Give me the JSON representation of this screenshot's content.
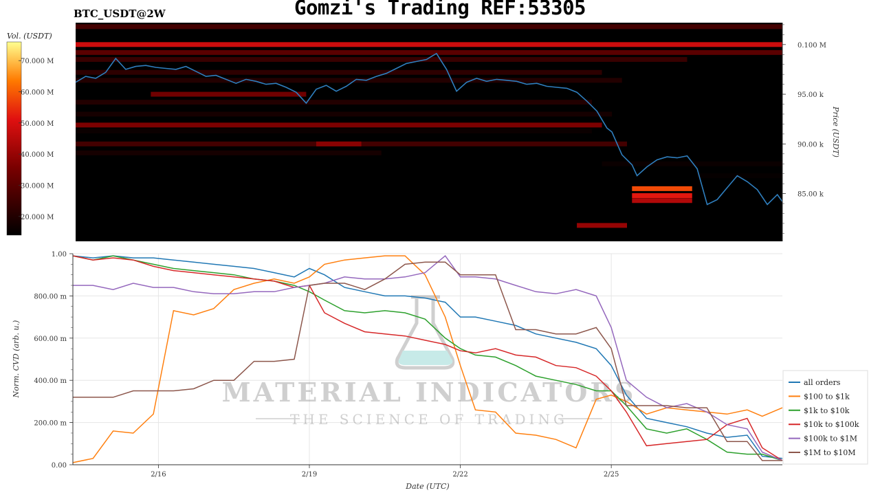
{
  "header": {
    "title": "Gomzi's Trading REF:53305",
    "symbol": "BTC_USDT@2W"
  },
  "watermark": {
    "brand": "MATERIAL INDICATORS",
    "tagline": "THE SCIENCE OF TRADING",
    "icon": "flask-icon"
  },
  "colors": {
    "price_line": "#2f7fbf",
    "heatmap_high": "#ffff80",
    "heatmap_mid": "#cc1010",
    "heatmap_low": "#000000"
  },
  "chart_data": [
    {
      "type": "heatmap",
      "name": "order-book-heatmap",
      "colorbar": {
        "label": "Vol. (USDT)",
        "ticks": [
          "20.000 M",
          "30.000 M",
          "40.000 M",
          "50.000 M",
          "60.000 M",
          "70.000 M"
        ],
        "tick_values": [
          20,
          30,
          40,
          50,
          60,
          70
        ],
        "range": [
          14,
          76
        ]
      },
      "y_axis": {
        "label": "Price (USDT)",
        "ticks": [
          "85.00 k",
          "90.00 k",
          "95.00 k",
          "0.100 M"
        ],
        "tick_values": [
          85000,
          90000,
          95000,
          100000
        ],
        "range": [
          80200,
          102200
        ],
        "position": "right"
      },
      "x_range": [
        14.3,
        28.4
      ],
      "bands": [
        {
          "price": 100000,
          "start": 14.3,
          "end": 28.4,
          "vol": 48
        },
        {
          "price": 99200,
          "start": 14.3,
          "end": 28.4,
          "vol": 30
        },
        {
          "price": 101800,
          "start": 14.3,
          "end": 28.4,
          "vol": 26
        },
        {
          "price": 98500,
          "start": 14.3,
          "end": 26.5,
          "vol": 24
        },
        {
          "price": 97200,
          "start": 14.3,
          "end": 24.8,
          "vol": 22
        },
        {
          "price": 96400,
          "start": 14.3,
          "end": 25.2,
          "vol": 20
        },
        {
          "price": 95000,
          "start": 15.8,
          "end": 18.9,
          "vol": 34
        },
        {
          "price": 94200,
          "start": 14.3,
          "end": 24.6,
          "vol": 20
        },
        {
          "price": 93000,
          "start": 14.3,
          "end": 25.0,
          "vol": 18
        },
        {
          "price": 91900,
          "start": 14.3,
          "end": 24.8,
          "vol": 36
        },
        {
          "price": 91300,
          "start": 14.3,
          "end": 24.6,
          "vol": 16
        },
        {
          "price": 90000,
          "start": 14.3,
          "end": 25.3,
          "vol": 26
        },
        {
          "price": 89100,
          "start": 14.3,
          "end": 20.4,
          "vol": 18
        },
        {
          "price": 90000,
          "start": 19.1,
          "end": 20.0,
          "vol": 38
        },
        {
          "price": 85500,
          "start": 25.4,
          "end": 26.6,
          "vol": 58
        },
        {
          "price": 84800,
          "start": 25.4,
          "end": 26.6,
          "vol": 52
        },
        {
          "price": 84300,
          "start": 25.4,
          "end": 26.6,
          "vol": 44
        },
        {
          "price": 81800,
          "start": 24.3,
          "end": 25.3,
          "vol": 40
        },
        {
          "price": 88000,
          "start": 24.8,
          "end": 28.4,
          "vol": 16
        },
        {
          "price": 86800,
          "start": 26.7,
          "end": 28.4,
          "vol": 15
        }
      ],
      "price_series": {
        "name": "price",
        "x": [
          14.3,
          14.5,
          14.7,
          14.9,
          15.1,
          15.3,
          15.5,
          15.7,
          15.9,
          16.1,
          16.3,
          16.5,
          16.7,
          16.9,
          17.1,
          17.3,
          17.5,
          17.7,
          17.9,
          18.1,
          18.3,
          18.5,
          18.7,
          18.9,
          19.1,
          19.3,
          19.5,
          19.7,
          19.9,
          20.1,
          20.3,
          20.5,
          20.7,
          20.9,
          21.1,
          21.3,
          21.4,
          21.5,
          21.7,
          21.9,
          22.1,
          22.3,
          22.5,
          22.7,
          22.9,
          23.1,
          23.3,
          23.5,
          23.7,
          23.9,
          24.1,
          24.3,
          24.5,
          24.7,
          24.9,
          25.0,
          25.2,
          25.4,
          25.5,
          25.7,
          25.9,
          26.1,
          26.3,
          26.5,
          26.7,
          26.9,
          27.1,
          27.3,
          27.5,
          27.7,
          27.9,
          28.1,
          28.3,
          28.4
        ],
        "y": [
          96200,
          96800,
          96600,
          97200,
          98600,
          97500,
          97800,
          97900,
          97700,
          97600,
          97500,
          97800,
          97300,
          96800,
          96900,
          96500,
          96100,
          96500,
          96300,
          96000,
          96100,
          95700,
          95200,
          94100,
          95500,
          95900,
          95300,
          95800,
          96500,
          96400,
          96800,
          97100,
          97600,
          98100,
          98300,
          98500,
          98800,
          99100,
          97500,
          95300,
          96200,
          96600,
          96300,
          96500,
          96400,
          96300,
          96000,
          96100,
          95800,
          95700,
          95600,
          95200,
          94300,
          93300,
          91600,
          91200,
          88900,
          87900,
          86800,
          87700,
          88400,
          88700,
          88600,
          88800,
          87500,
          83900,
          84400,
          85600,
          86800,
          86200,
          85400,
          83900,
          84900,
          84200
        ]
      }
    },
    {
      "type": "line",
      "name": "normalized-cvd",
      "ylabel": "Norm. CVD (arb. u.)",
      "xlabel": "Date (UTC)",
      "x_ticks": [
        "2/16",
        "2/19",
        "2/22",
        "2/25"
      ],
      "x_tick_values": [
        16,
        19,
        22,
        25
      ],
      "xlim": [
        14.3,
        28.4
      ],
      "y_ticks": [
        "0.00",
        "200.00 m",
        "400.00 m",
        "600.00 m",
        "800.00 m",
        "1.00"
      ],
      "y_tick_values": [
        0,
        0.2,
        0.4,
        0.6,
        0.8,
        1.0
      ],
      "ylim": [
        0,
        1.0
      ],
      "grid": true,
      "legend_position": "bottom-right outside",
      "x": [
        14.3,
        14.7,
        15.1,
        15.5,
        15.9,
        16.3,
        16.7,
        17.1,
        17.5,
        17.9,
        18.3,
        18.7,
        19.0,
        19.3,
        19.7,
        20.1,
        20.5,
        20.9,
        21.3,
        21.7,
        22.0,
        22.3,
        22.7,
        23.1,
        23.5,
        23.9,
        24.3,
        24.7,
        25.0,
        25.3,
        25.7,
        26.1,
        26.5,
        26.9,
        27.3,
        27.7,
        28.0,
        28.4
      ],
      "series": [
        {
          "name": "all orders",
          "color": "#1f77b4",
          "values": [
            0.99,
            0.98,
            0.99,
            0.98,
            0.98,
            0.97,
            0.96,
            0.95,
            0.94,
            0.93,
            0.91,
            0.89,
            0.93,
            0.9,
            0.84,
            0.82,
            0.8,
            0.8,
            0.79,
            0.77,
            0.7,
            0.7,
            0.68,
            0.66,
            0.62,
            0.6,
            0.58,
            0.55,
            0.47,
            0.33,
            0.22,
            0.2,
            0.18,
            0.15,
            0.13,
            0.14,
            0.04,
            0.03
          ]
        },
        {
          "name": "$100 to $1k",
          "color": "#ff7f0e",
          "values": [
            0.01,
            0.03,
            0.16,
            0.15,
            0.24,
            0.73,
            0.71,
            0.74,
            0.83,
            0.86,
            0.88,
            0.86,
            0.89,
            0.95,
            0.97,
            0.98,
            0.99,
            0.99,
            0.9,
            0.7,
            0.47,
            0.26,
            0.25,
            0.15,
            0.14,
            0.12,
            0.08,
            0.31,
            0.33,
            0.3,
            0.24,
            0.27,
            0.26,
            0.25,
            0.24,
            0.26,
            0.23,
            0.27
          ]
        },
        {
          "name": "$1k to $10k",
          "color": "#2ca02c",
          "values": [
            0.99,
            0.97,
            0.99,
            0.97,
            0.95,
            0.93,
            0.92,
            0.91,
            0.9,
            0.88,
            0.87,
            0.85,
            0.82,
            0.78,
            0.73,
            0.72,
            0.73,
            0.72,
            0.69,
            0.6,
            0.55,
            0.52,
            0.51,
            0.47,
            0.42,
            0.4,
            0.38,
            0.35,
            0.35,
            0.28,
            0.17,
            0.15,
            0.17,
            0.12,
            0.06,
            0.05,
            0.05,
            0.02
          ]
        },
        {
          "name": "$10k to $100k",
          "color": "#d62728",
          "values": [
            0.99,
            0.97,
            0.98,
            0.97,
            0.94,
            0.92,
            0.91,
            0.9,
            0.89,
            0.88,
            0.87,
            0.84,
            0.85,
            0.72,
            0.67,
            0.63,
            0.62,
            0.61,
            0.59,
            0.57,
            0.54,
            0.53,
            0.55,
            0.52,
            0.51,
            0.47,
            0.46,
            0.42,
            0.35,
            0.25,
            0.09,
            0.1,
            0.11,
            0.12,
            0.19,
            0.22,
            0.08,
            0.02
          ]
        },
        {
          "name": "$100k to $1M",
          "color": "#9467bd",
          "values": [
            0.85,
            0.85,
            0.83,
            0.86,
            0.84,
            0.84,
            0.82,
            0.81,
            0.81,
            0.82,
            0.82,
            0.84,
            0.85,
            0.86,
            0.89,
            0.88,
            0.88,
            0.89,
            0.91,
            0.99,
            0.89,
            0.89,
            0.88,
            0.85,
            0.82,
            0.81,
            0.83,
            0.8,
            0.65,
            0.4,
            0.32,
            0.27,
            0.29,
            0.25,
            0.19,
            0.17,
            0.06,
            0.02
          ]
        },
        {
          "name": "$1M to $10M",
          "color": "#8c564b",
          "values": [
            0.32,
            0.32,
            0.32,
            0.35,
            0.35,
            0.35,
            0.36,
            0.4,
            0.4,
            0.49,
            0.49,
            0.5,
            0.85,
            0.86,
            0.86,
            0.83,
            0.88,
            0.95,
            0.96,
            0.96,
            0.9,
            0.9,
            0.9,
            0.64,
            0.64,
            0.62,
            0.62,
            0.65,
            0.55,
            0.28,
            0.28,
            0.28,
            0.27,
            0.27,
            0.11,
            0.11,
            0.02,
            0.02
          ]
        }
      ]
    }
  ]
}
